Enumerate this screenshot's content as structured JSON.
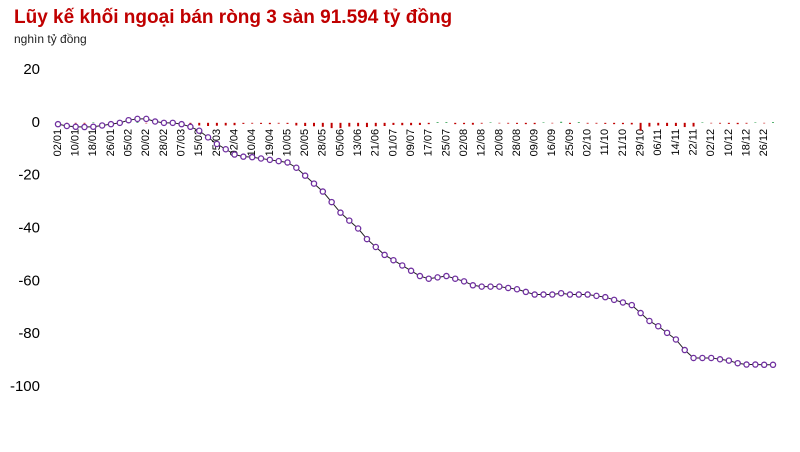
{
  "chart_data": {
    "type": "line",
    "title": "Lũy kế khối ngoại bán ròng 3 sàn 91.594 tỷ đồng",
    "subtitle": "nghìn tỷ đồng",
    "categories": [
      "02/01",
      null,
      "10/01",
      null,
      "18/01",
      null,
      "26/01",
      null,
      "05/02",
      null,
      "20/02",
      null,
      "28/02",
      null,
      "07/03",
      null,
      "15/03",
      null,
      "25/03",
      null,
      "02/04",
      null,
      "10/04",
      null,
      "19/04",
      null,
      "10/05",
      null,
      "20/05",
      null,
      "28/05",
      null,
      "05/06",
      null,
      "13/06",
      null,
      "21/06",
      null,
      "01/07",
      null,
      "09/07",
      null,
      "17/07",
      null,
      "25/07",
      null,
      "02/08",
      null,
      "12/08",
      null,
      "20/08",
      null,
      "28/08",
      null,
      "09/09",
      null,
      "16/09",
      null,
      "25/09",
      null,
      "02/10",
      null,
      "11/10",
      null,
      "21/10",
      null,
      "29/10",
      null,
      "06/11",
      null,
      "14/11",
      null,
      "22/11",
      null,
      "02/12",
      null,
      "10/12",
      null,
      "18/12",
      null,
      "26/12",
      null
    ],
    "series": [
      {
        "type": "bar",
        "color": "#c00000",
        "positive_color": "#2e9e4f",
        "values": [
          -0.3,
          -0.4,
          -0.2,
          -0.3,
          0.2,
          -0.2,
          0.3,
          0.4,
          0.5,
          0.3,
          -0.2,
          -0.6,
          -0.3,
          -0.2,
          -0.5,
          -0.8,
          -1,
          -1.2,
          -1.1,
          -1,
          -0.9,
          -0.4,
          -0.3,
          -0.4,
          -0.5,
          -0.3,
          -0.4,
          -1,
          -1.2,
          -1.3,
          -1.5,
          -2,
          -2,
          -1.4,
          -1.3,
          -1.6,
          -1.3,
          -1.2,
          -0.8,
          -0.9,
          -0.9,
          -0.8,
          -0.5,
          0.3,
          0.3,
          -0.5,
          -0.5,
          -0.7,
          -0.3,
          0.2,
          -0.2,
          -0.3,
          -0.4,
          -0.5,
          -0.5,
          0.2,
          -0.2,
          0.4,
          -0.4,
          0.3,
          -0.3,
          -0.3,
          -0.4,
          -0.5,
          -0.5,
          -0.6,
          -3,
          -1.4,
          -1,
          -1.2,
          -1.2,
          -1.6,
          -1.4,
          0.2,
          -0.2,
          -0.3,
          -0.4,
          -0.5,
          -0.3,
          0.2,
          -0.2,
          0.3
        ]
      },
      {
        "color": "#7030a0",
        "values": [
          -0.5,
          -1.2,
          -1.5,
          -1.6,
          -1.5,
          -1,
          -0.5,
          0,
          1,
          1.5,
          1.5,
          0.5,
          0,
          0,
          -0.5,
          -1.5,
          -3,
          -5.5,
          -8,
          -10,
          -12,
          -12.8,
          -13,
          -13.5,
          -14,
          -14.5,
          -15,
          -17,
          -20,
          -23,
          -26,
          -30,
          -34,
          -37,
          -40,
          -44,
          -47,
          -50,
          -52,
          -54,
          -56,
          -58,
          -59,
          -58.5,
          -58,
          -59,
          -60,
          -61.5,
          -62,
          -62,
          -62,
          -62.5,
          -63,
          -64,
          -65,
          -65,
          -65,
          -64.5,
          -65,
          -65,
          -65,
          -65.5,
          -66,
          -67,
          -68,
          -69,
          -72,
          -75,
          -77,
          -79.5,
          -82,
          -86,
          -89,
          -89,
          -89,
          -89.5,
          -90,
          -91,
          -91.5,
          -91.5,
          -91.6,
          -91.594
        ]
      }
    ],
    "ylim": [
      -100,
      20
    ],
    "yticks": [
      20,
      0,
      -20,
      -40,
      -60,
      -80,
      -100
    ],
    "grid": false
  }
}
